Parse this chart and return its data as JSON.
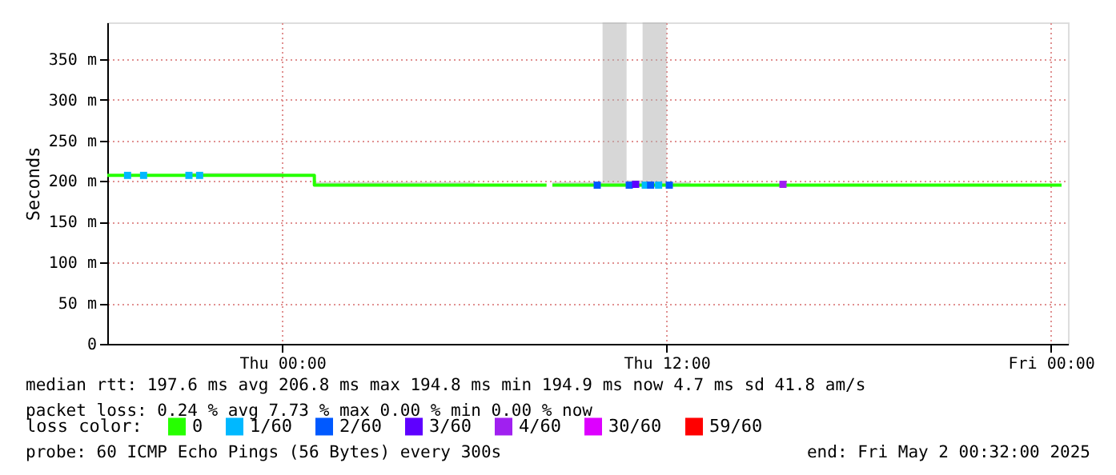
{
  "chart_data": {
    "type": "step",
    "ylabel": "Seconds",
    "legend_title": "loss color:",
    "legend": "bottom",
    "grid": true,
    "xlim": [
      "2025-04-30T18:32",
      "2025-05-02T00:32"
    ],
    "xticks": [
      {
        "value": "2025-05-01T00:00",
        "label": "Thu 00:00"
      },
      {
        "value": "2025-05-01T12:00",
        "label": "Thu 12:00"
      },
      {
        "value": "2025-05-02T00:00",
        "label": "Fri 00:00"
      }
    ],
    "ylim": [
      0,
      395
    ],
    "yticks": [
      0,
      {
        "value": 50,
        "label": "50 m"
      },
      {
        "value": 100,
        "label": "100 m"
      },
      {
        "value": 150,
        "label": "150 m"
      },
      {
        "value": 200,
        "label": "200 m"
      },
      {
        "value": 250,
        "label": "250 m"
      },
      {
        "value": 300,
        "label": "300 m"
      },
      {
        "value": 350,
        "label": "350 m"
      }
    ],
    "annotations": [
      "median rtt:  197.6 ms avg  206.8 ms max  194.8 ms min  194.9 ms now  4.7 ms sd  41.8   am/s",
      "packet loss: 0.24 % avg  7.73 % max  0.00 % min  0.00 % now",
      "probe:       60 ICMP Echo Pings (56 Bytes) every 300s",
      "end: Fri May  2 00:32:00 2025"
    ],
    "series": [
      {
        "name": "0",
        "color": "#26ff00",
        "x": [
          "2025-04-30T18:32",
          "2025-04-30T21:00",
          "2025-05-01T00:00",
          "2025-05-01T01:00",
          "2025-05-01T06:00",
          "2025-05-01T08:15",
          "2025-05-01T08:17",
          "2025-05-01T08:26",
          "2025-05-01T10:00",
          "2025-05-01T10:45",
          "2025-05-01T11:15",
          "2025-05-01T12:00",
          "2025-05-01T12:45",
          "2025-05-02T00:20"
        ],
        "values": [
          207,
          207,
          207,
          195,
          195,
          195,
          null,
          195,
          195,
          195,
          195,
          195,
          195,
          195
        ],
        "lower": [
          206,
          206,
          206,
          194,
          194,
          194,
          null,
          194,
          193,
          193,
          193,
          194,
          194,
          194
        ],
        "upper": [
          208,
          210,
          208,
          199,
          196,
          196,
          null,
          199,
          395,
          201,
          395,
          199,
          196,
          196
        ]
      },
      {
        "name": "1/60",
        "color": "#00b8ff",
        "type": "scatter",
        "marker": "square",
        "x": [
          "2025-04-30T19:10",
          "2025-04-30T19:40",
          "2025-04-30T21:05",
          "2025-04-30T21:25",
          "2025-05-01T11:20",
          "2025-05-01T11:45"
        ],
        "values": [
          207,
          207,
          207,
          207,
          195,
          195
        ]
      },
      {
        "name": "2/60",
        "color": "#0059ff",
        "type": "scatter",
        "marker": "square",
        "x": [
          "2025-05-01T09:50",
          "2025-05-01T10:50",
          "2025-05-01T11:30",
          "2025-05-01T12:05"
        ],
        "values": [
          195,
          195,
          195,
          195
        ]
      },
      {
        "name": "3/60",
        "color": "#5e00ff",
        "type": "scatter",
        "marker": "square",
        "x": [
          "2025-05-01T11:02"
        ],
        "values": [
          196
        ]
      },
      {
        "name": "4/60",
        "color": "#a020f0",
        "type": "scatter",
        "marker": "square",
        "x": [
          "2025-05-01T15:38"
        ],
        "values": [
          196
        ]
      },
      {
        "name": "30/60",
        "color": "#dd00ff",
        "type": "scatter"
      },
      {
        "name": "59/60",
        "color": "#ff0000",
        "type": "scatter"
      }
    ]
  }
}
